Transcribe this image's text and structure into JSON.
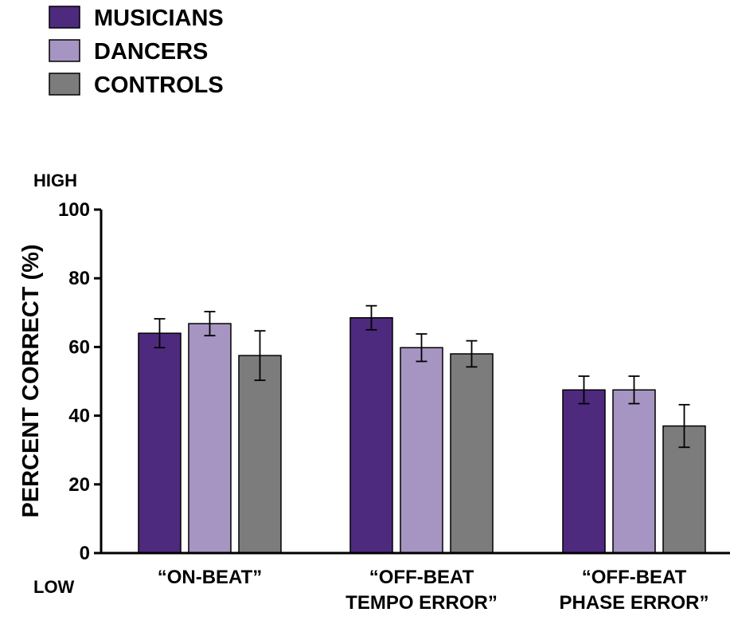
{
  "chart_data": {
    "type": "bar",
    "categories": [
      [
        "“ON-BEAT”"
      ],
      [
        "“OFF-BEAT",
        "TEMPO ERROR”"
      ],
      [
        "“OFF-BEAT",
        "PHASE ERROR”"
      ]
    ],
    "series": [
      {
        "name": "MUSICIANS",
        "color": "#4e2a7e",
        "values": [
          64,
          68.5,
          47.5
        ],
        "errors": [
          4.2,
          3.5,
          4.0
        ]
      },
      {
        "name": "DANCERS",
        "color": "#a695c2",
        "values": [
          66.8,
          59.8,
          47.5
        ],
        "errors": [
          3.5,
          4.0,
          4.0
        ]
      },
      {
        "name": "CONTROLS",
        "color": "#7c7c7c",
        "values": [
          57.5,
          58,
          37
        ],
        "errors": [
          7.2,
          3.8,
          6.2
        ]
      }
    ],
    "ylabel": "PERCENT CORRECT (%)",
    "ylim": [
      0,
      100
    ],
    "yticks": [
      0,
      20,
      40,
      60,
      80,
      100
    ],
    "y_high_label": "HIGH",
    "y_low_label": "LOW",
    "legend_position": "top-left",
    "grid": false
  }
}
